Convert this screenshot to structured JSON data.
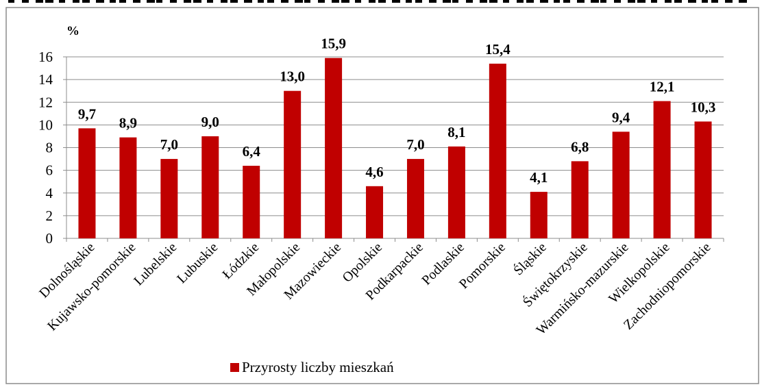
{
  "chart_data": {
    "type": "bar",
    "ylabel": "%",
    "ylim": [
      0,
      16
    ],
    "yticks": [
      0,
      2,
      4,
      6,
      8,
      10,
      12,
      14,
      16
    ],
    "grid": true,
    "legend_position": "bottom",
    "categories": [
      "Dolnośląskie",
      "Kujawsko-pomorskie",
      "Lubelskie",
      "Lubuskie",
      "Łódzkie",
      "Małopolskie",
      "Mazowieckie",
      "Opolskie",
      "Podkarpackie",
      "Podlaskie",
      "Pomorskie",
      "Śląskie",
      "Świętokrzyskie",
      "Warmińsko-mazurskie",
      "Wielkopolskie",
      "Zachodniopomorskie"
    ],
    "series": [
      {
        "name": "Przyrosty liczby mieszkań",
        "color": "#C00000",
        "values": [
          9.7,
          8.9,
          7.0,
          9.0,
          6.4,
          13.0,
          15.9,
          4.6,
          7.0,
          8.1,
          15.4,
          4.1,
          6.8,
          9.4,
          12.1,
          10.3
        ],
        "labels": [
          "9,7",
          "8,9",
          "7,0",
          "9,0",
          "6,4",
          "13,0",
          "15,9",
          "4,6",
          "7,0",
          "8,1",
          "15,4",
          "4,1",
          "6,8",
          "9,4",
          "12,1",
          "10,3"
        ]
      }
    ]
  }
}
